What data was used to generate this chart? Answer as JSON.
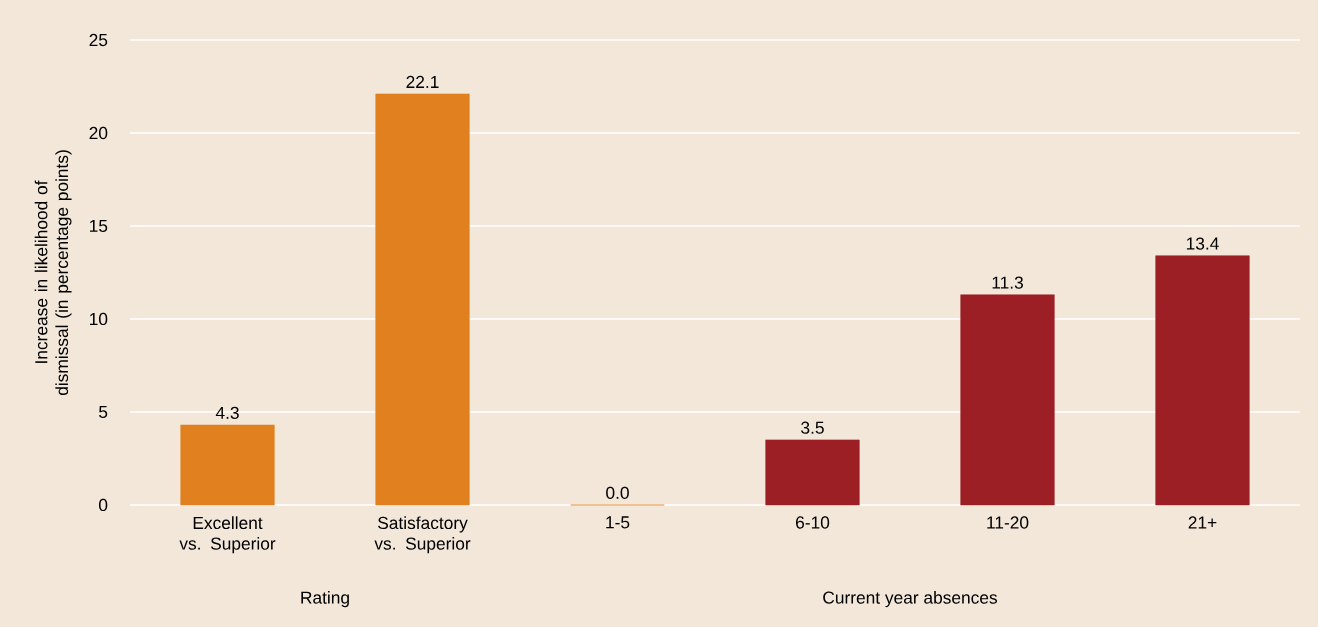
{
  "chart_data": {
    "type": "bar",
    "ylabel": "Increase in likelihood of dismissal (in percentage points)",
    "categories": [
      "Excellent vs. Superior",
      "Satisfactory vs. Superior",
      "1-5",
      "6-10",
      "11-20",
      "21+"
    ],
    "values": [
      4.3,
      22.1,
      0.0,
      3.5,
      11.3,
      13.4
    ],
    "colors": [
      "#e0801f",
      "#e0801f",
      "#e0801f",
      "#9b1f24",
      "#9b1f24",
      "#9b1f24"
    ],
    "ylim": [
      0,
      25
    ],
    "yticks": [
      0,
      5,
      10,
      15,
      20,
      25
    ],
    "grid": "y",
    "value_labels": [
      "4.3",
      "22.1",
      "0.0",
      "3.5",
      "11.3",
      "13.4"
    ],
    "annotations": [
      "Rating",
      "Current year absences"
    ]
  }
}
